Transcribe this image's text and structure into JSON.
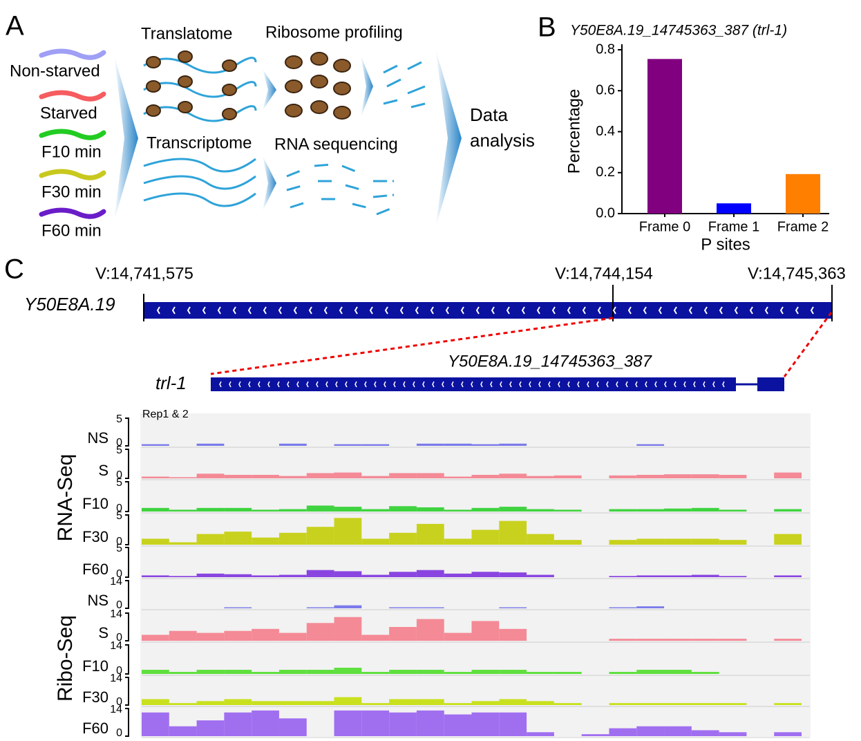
{
  "panel_labels": [
    "A",
    "B",
    "C"
  ],
  "schematic": {
    "conditions": [
      "Non-starved",
      "Starved",
      "F10 min",
      "F30 min",
      "F60 min"
    ],
    "translatome": "Translatome",
    "ribosome_profiling": "Ribosome profiling",
    "transcriptome": "Transcriptome",
    "rna_sequencing": "RNA sequencing",
    "data_analysis": [
      "Data",
      "analysis"
    ]
  },
  "chart_data": {
    "type": "bar",
    "title": "Y50E8A.19_14745363_387 (trl-1)",
    "categories": [
      "Frame 0",
      "Frame 1",
      "Frame 2"
    ],
    "values": [
      0.755,
      0.05,
      0.193
    ],
    "colors": [
      "#800080",
      "#0000ff",
      "#ff8000"
    ],
    "xlabel": "P sites",
    "ylabel": "Percentage",
    "ylim": [
      0,
      0.8
    ],
    "yticks": [
      {
        "value": 0,
        "label": "0.0"
      },
      0.2,
      0.4,
      0.6,
      0.8
    ]
  },
  "genome": {
    "coordinates": [
      "V:14,741,575",
      "V:14,744,154",
      "V:14,745,363"
    ],
    "gene": "Y50E8A.19",
    "transcript": "trl-1",
    "orf": "Y50E8A.19_14745363_387",
    "replicates": "Rep1 & 2",
    "groups": [
      {
        "name": "RNA-Seq",
        "tracks": [
          {
            "name": "NS",
            "scale": [
              5,
              0
            ],
            "color": "#7b7bea",
            "values": [
              0.3,
              0,
              0.4,
              0,
              0,
              0.4,
              0,
              0.3,
              0.3,
              0,
              0.4,
              0.4,
              0.3,
              0.4,
              0,
              0,
              0,
              0,
              0.3,
              0,
              0,
              0,
              0,
              0
            ]
          },
          {
            "name": "S",
            "scale": [
              5,
              0
            ],
            "color": "#f48a96",
            "values": [
              0.3,
              0.2,
              0.8,
              0.6,
              0.6,
              0.4,
              0.9,
              1.0,
              0.4,
              0.9,
              0.9,
              0.3,
              0.6,
              0.8,
              0.4,
              0.5,
              0,
              0.5,
              0.6,
              0.7,
              0.7,
              0.6,
              0,
              1.0
            ]
          },
          {
            "name": "F10",
            "scale": [
              5,
              0
            ],
            "color": "#3fd33f",
            "values": [
              0.6,
              0.3,
              0.6,
              0.6,
              0.3,
              0.4,
              1.0,
              0.8,
              0.4,
              0.9,
              0.7,
              0.3,
              0.6,
              0.8,
              0.4,
              0.3,
              0,
              0.4,
              0.4,
              0.5,
              0.6,
              0.3,
              0,
              0.4
            ]
          },
          {
            "name": "F30",
            "scale": [
              5,
              0
            ],
            "color": "#c8d21e",
            "values": [
              1.0,
              0.4,
              1.8,
              2.2,
              1.2,
              2.0,
              3.0,
              4.5,
              1.0,
              2.0,
              3.5,
              1.0,
              2.5,
              4.0,
              1.8,
              0.8,
              0,
              0.8,
              1.0,
              1.0,
              1.0,
              0.8,
              0,
              1.8
            ]
          },
          {
            "name": "F60",
            "scale": [
              5,
              0
            ],
            "color": "#8a45e0",
            "values": [
              0.3,
              0.2,
              0.6,
              0.5,
              0.3,
              0.4,
              1.2,
              1.0,
              0.4,
              0.9,
              1.2,
              0.6,
              0.9,
              0.8,
              0.4,
              0,
              0,
              0.2,
              0.3,
              0.3,
              0.4,
              0.2,
              0,
              0.3
            ]
          }
        ]
      },
      {
        "name": "Ribo-Seq",
        "tracks": [
          {
            "name": "NS",
            "scale": [
              14,
              0
            ],
            "color": "#7b7bea",
            "values": [
              0,
              0,
              0,
              0.5,
              0,
              0,
              0.5,
              1.5,
              0,
              0.5,
              0.5,
              0,
              0,
              0.5,
              0,
              0,
              0,
              0.5,
              1.0,
              0,
              0,
              0,
              0,
              0
            ]
          },
          {
            "name": "S",
            "scale": [
              14,
              0
            ],
            "color": "#f48a96",
            "values": [
              3,
              5,
              4,
              5,
              6,
              4,
              9,
              12,
              3,
              7,
              11,
              4,
              10,
              6,
              0,
              0,
              0,
              1,
              1,
              1,
              1,
              1,
              0,
              1
            ]
          },
          {
            "name": "F10",
            "scale": [
              14,
              0
            ],
            "color": "#5fe03f",
            "values": [
              2,
              1,
              2,
              2,
              1,
              2,
              2,
              3,
              1,
              2,
              2,
              1,
              2,
              2,
              1,
              1,
              0,
              1,
              2,
              2,
              1,
              0,
              0,
              0
            ]
          },
          {
            "name": "F30",
            "scale": [
              14,
              0
            ],
            "color": "#c8e01e",
            "values": [
              3,
              1,
              2,
              3,
              2,
              2,
              2,
              4,
              1,
              3,
              3,
              1,
              2,
              3,
              2,
              1,
              0,
              1,
              1,
              1,
              1,
              1,
              0,
              1
            ]
          },
          {
            "name": "F60",
            "scale": [
              14,
              0
            ],
            "color": "#a06ff0",
            "values": [
              12,
              5,
              8,
              12,
              13,
              9,
              0,
              13,
              13,
              12,
              13,
              11,
              12,
              12,
              2,
              0,
              1,
              4,
              5,
              5,
              3,
              2,
              0,
              2
            ]
          }
        ]
      }
    ]
  }
}
